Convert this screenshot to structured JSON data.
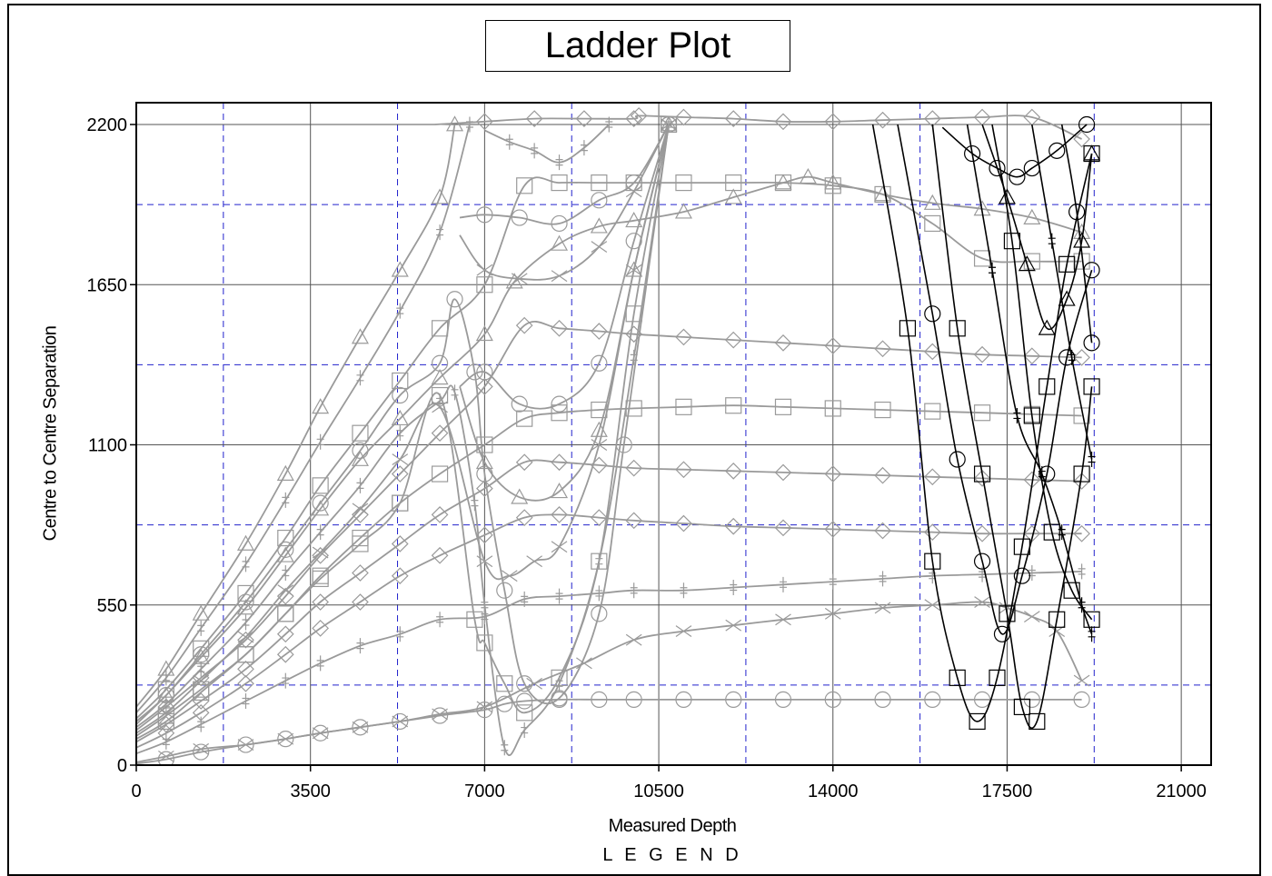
{
  "chart_data": {
    "type": "line",
    "title": "Ladder Plot",
    "xlabel": "Measured Depth",
    "ylabel": "Centre to Centre Separation",
    "legend_title": "L E G E N D",
    "xlim": [
      0,
      21600
    ],
    "ylim": [
      0,
      2200
    ],
    "xticks": [
      0,
      3500,
      7000,
      10500,
      14000,
      17500,
      21000
    ],
    "yticks": [
      0,
      550,
      1100,
      1650,
      2200
    ],
    "minor_grid_x": [
      1750,
      5250,
      8750,
      12250,
      15750,
      19250
    ],
    "minor_grid_y": [
      275,
      825,
      1375,
      1925
    ],
    "grid": true,
    "colors": {
      "offset_wells": "#9a9a9a",
      "reference_wells": "#000000",
      "minor_grid": "#2222cc",
      "major_grid": "#555555"
    },
    "series": [
      {
        "marker": "circle",
        "color": "#9a9a9a",
        "x": [
          0,
          600,
          1300,
          2200,
          3000,
          3700,
          4500,
          5300,
          6100,
          7000,
          7400,
          7800,
          8500,
          9300,
          10000,
          11000,
          12000,
          13000,
          14000,
          15000,
          16000,
          17000,
          18000,
          19000
        ],
        "y": [
          5,
          20,
          45,
          70,
          90,
          110,
          130,
          150,
          170,
          190,
          210,
          220,
          225,
          225,
          225,
          225,
          225,
          225,
          225,
          225,
          225,
          225,
          225,
          225
        ]
      },
      {
        "marker": "x",
        "color": "#9a9a9a",
        "x": [
          0,
          600,
          1300,
          2200,
          3000,
          3700,
          4500,
          5300,
          6100,
          7000,
          8000,
          9000,
          10000,
          11000,
          12000,
          13000,
          14000,
          15000,
          16000,
          17000,
          17500,
          18000,
          18500,
          19000
        ],
        "y": [
          10,
          30,
          55,
          70,
          90,
          110,
          130,
          150,
          175,
          200,
          280,
          350,
          430,
          460,
          480,
          500,
          520,
          540,
          550,
          560,
          540,
          510,
          460,
          290
        ]
      },
      {
        "marker": "plus",
        "color": "#9a9a9a",
        "x": [
          0,
          600,
          1300,
          2200,
          3000,
          3700,
          4500,
          5300,
          6100,
          7000,
          7800,
          8500,
          9300,
          10000,
          11000,
          12000,
          13000,
          14000,
          15000,
          16000,
          17000,
          18000,
          19000
        ],
        "y": [
          40,
          80,
          140,
          220,
          290,
          350,
          410,
          450,
          500,
          510,
          570,
          580,
          590,
          600,
          600,
          610,
          620,
          630,
          640,
          650,
          655,
          660,
          665
        ]
      },
      {
        "marker": "diamond",
        "color": "#9a9a9a",
        "x": [
          0,
          600,
          1300,
          2200,
          3000,
          3700,
          4500,
          5300,
          6100,
          7000,
          7800,
          8500,
          9300,
          10000,
          11000,
          12000,
          13000,
          14000,
          15000,
          16000,
          17000,
          18000,
          19000
        ],
        "y": [
          60,
          110,
          180,
          280,
          380,
          470,
          560,
          650,
          720,
          790,
          850,
          860,
          850,
          840,
          830,
          820,
          815,
          810,
          805,
          800,
          795,
          795,
          795
        ]
      },
      {
        "marker": "diamond",
        "color": "#9a9a9a",
        "x": [
          0,
          600,
          1300,
          2200,
          3000,
          3700,
          4500,
          5300,
          6100,
          7000,
          7800,
          8500,
          9300,
          10000,
          11000,
          12000,
          13000,
          14000,
          15000,
          16000,
          17000,
          18000,
          19000
        ],
        "y": [
          80,
          140,
          220,
          330,
          450,
          560,
          660,
          760,
          860,
          950,
          1040,
          1040,
          1030,
          1020,
          1015,
          1010,
          1005,
          1000,
          995,
          990,
          985,
          980,
          975
        ]
      },
      {
        "marker": "square",
        "color": "#9a9a9a",
        "x": [
          0,
          600,
          1300,
          2200,
          3000,
          3700,
          4500,
          5300,
          6100,
          7000,
          7800,
          8500,
          9300,
          10000,
          11000,
          12000,
          13000,
          14000,
          15000,
          16000,
          17000,
          18000,
          19000
        ],
        "y": [
          100,
          170,
          260,
          380,
          520,
          650,
          780,
          900,
          1000,
          1100,
          1190,
          1210,
          1220,
          1225,
          1230,
          1235,
          1230,
          1225,
          1220,
          1215,
          1210,
          1205,
          1200
        ]
      },
      {
        "marker": "diamond",
        "color": "#9a9a9a",
        "x": [
          0,
          600,
          1300,
          2200,
          3000,
          3700,
          4500,
          5300,
          6100,
          7000,
          7800,
          8500,
          9300,
          10000,
          11000,
          12000,
          13000,
          14000,
          15000,
          16000,
          17000,
          18000,
          19000
        ],
        "y": [
          120,
          200,
          300,
          430,
          580,
          720,
          860,
          1000,
          1140,
          1300,
          1510,
          1500,
          1490,
          1480,
          1470,
          1460,
          1450,
          1440,
          1430,
          1420,
          1410,
          1405,
          1400
        ]
      },
      {
        "marker": "triangle",
        "color": "#9a9a9a",
        "x": [
          0,
          600,
          1300,
          2200,
          3000,
          3700,
          4500,
          5300,
          6100,
          7000,
          7600,
          8500,
          9300,
          10000,
          11000,
          12000,
          13000,
          13500,
          14000,
          15000,
          16000,
          17000,
          18000,
          19000
        ],
        "y": [
          140,
          240,
          370,
          540,
          720,
          880,
          1050,
          1190,
          1330,
          1480,
          1660,
          1790,
          1850,
          1870,
          1900,
          1950,
          2000,
          2020,
          2000,
          1960,
          1930,
          1910,
          1880,
          1830
        ]
      },
      {
        "marker": "square",
        "color": "#9a9a9a",
        "x": [
          0,
          600,
          1300,
          2200,
          3000,
          3700,
          4500,
          5300,
          6100,
          7000,
          7800,
          8500,
          9300,
          10000,
          11000,
          12000,
          13000,
          14000,
          15000,
          16000,
          17000,
          18000,
          19000
        ],
        "y": [
          160,
          260,
          400,
          590,
          780,
          960,
          1140,
          1320,
          1500,
          1650,
          1990,
          2000,
          2000,
          2000,
          2000,
          2000,
          2000,
          1990,
          1960,
          1860,
          1740,
          1730,
          1730
        ]
      },
      {
        "marker": "diamond",
        "color": "#9a9a9a",
        "x": [
          6000,
          7000,
          8000,
          9000,
          10000,
          10100,
          11000,
          12000,
          13000,
          14000,
          15000,
          16000,
          17000,
          18000,
          19000
        ],
        "y": [
          2200,
          2210,
          2220,
          2220,
          2220,
          2230,
          2225,
          2220,
          2210,
          2210,
          2215,
          2220,
          2225,
          2225,
          2150
        ]
      },
      {
        "marker": "triangle",
        "color": "#9a9a9a",
        "x": [
          0,
          600,
          1300,
          2200,
          3000,
          3700,
          4500,
          5300,
          6100,
          6400
        ],
        "y": [
          200,
          330,
          520,
          760,
          1000,
          1230,
          1470,
          1700,
          1950,
          2200
        ]
      },
      {
        "marker": "plus",
        "color": "#9a9a9a",
        "x": [
          0,
          600,
          1300,
          2200,
          3000,
          3700,
          4500,
          5300,
          6100,
          6700
        ],
        "y": [
          180,
          300,
          470,
          690,
          910,
          1110,
          1330,
          1560,
          1830,
          2200
        ]
      },
      {
        "marker": "circle",
        "color": "#9a9a9a",
        "x": [
          0,
          600,
          1300,
          2200,
          3000,
          3700,
          4500,
          5300,
          6100,
          6400,
          6800,
          7000,
          7400,
          7800,
          8500,
          9300,
          9800,
          10700
        ],
        "y": [
          150,
          240,
          380,
          560,
          740,
          900,
          1080,
          1270,
          1380,
          1600,
          1350,
          1000,
          600,
          280,
          230,
          520,
          1100,
          2200
        ]
      },
      {
        "marker": "plus",
        "color": "#9a9a9a",
        "x": [
          0,
          600,
          1300,
          2200,
          3000,
          3700,
          4500,
          5300,
          6100,
          6400,
          6800,
          7000,
          7400,
          7800,
          8500,
          9300,
          10000,
          10700
        ],
        "y": [
          130,
          210,
          330,
          490,
          660,
          800,
          960,
          1140,
          1250,
          1280,
          900,
          550,
          60,
          120,
          280,
          700,
          1400,
          2200
        ]
      },
      {
        "marker": "x",
        "color": "#9a9a9a",
        "x": [
          0,
          600,
          1300,
          2200,
          3000,
          3700,
          4500,
          5300,
          6100,
          7000,
          7500,
          8000,
          8500,
          9300,
          10000,
          10700
        ],
        "y": [
          110,
          180,
          290,
          440,
          600,
          730,
          880,
          1050,
          1230,
          700,
          650,
          700,
          750,
          1100,
          1700,
          2200
        ]
      },
      {
        "marker": "square",
        "color": "#9a9a9a",
        "x": [
          0,
          600,
          1300,
          2200,
          3000,
          3700,
          4500,
          5300,
          6100,
          6800,
          7000,
          7400,
          7800,
          8500,
          9300,
          10000,
          10700
        ],
        "y": [
          90,
          150,
          250,
          380,
          520,
          640,
          760,
          900,
          1270,
          500,
          420,
          280,
          180,
          300,
          700,
          1550,
          2200
        ]
      },
      {
        "marker": "circle",
        "color": "#9a9a9a",
        "x": [
          6500,
          7000,
          7700,
          8500,
          9300,
          10000,
          10700
        ],
        "y": [
          1880,
          1890,
          1880,
          1860,
          1940,
          2000,
          2200
        ]
      },
      {
        "marker": "circle",
        "color": "#9a9a9a",
        "x": [
          6500,
          7000,
          7700,
          8500,
          9300,
          10000,
          10700
        ],
        "y": [
          1300,
          1350,
          1240,
          1240,
          1380,
          1800,
          2200
        ]
      },
      {
        "marker": "x",
        "color": "#9a9a9a",
        "x": [
          6500,
          7000,
          7700,
          8500,
          9300,
          10000,
          10700
        ],
        "y": [
          1820,
          1700,
          1670,
          1680,
          1780,
          1970,
          2200
        ]
      },
      {
        "marker": "triangle",
        "color": "#9a9a9a",
        "x": [
          6500,
          7000,
          7700,
          8500,
          9300,
          10000,
          10700
        ],
        "y": [
          1300,
          1040,
          920,
          940,
          1150,
          1700,
          2200
        ]
      },
      {
        "marker": "plus",
        "color": "#9a9a9a",
        "x": [
          7000,
          7500,
          8000,
          8500,
          9000,
          9500
        ],
        "y": [
          2180,
          2140,
          2110,
          2070,
          2120,
          2200
        ]
      },
      {
        "marker": "circle",
        "color": "#000000",
        "x": [
          16200,
          16800,
          17300,
          17700,
          18000,
          18500,
          19100
        ],
        "y": [
          2190,
          2100,
          2050,
          2020,
          2050,
          2110,
          2200
        ]
      },
      {
        "marker": "square",
        "color": "#000000",
        "x": [
          14800,
          15500,
          16000,
          16500,
          16900,
          17300,
          17800,
          18300,
          18700,
          19200
        ],
        "y": [
          2200,
          1500,
          700,
          300,
          150,
          300,
          750,
          1300,
          1720,
          2100
        ]
      },
      {
        "marker": "circle",
        "color": "#000000",
        "x": [
          15300,
          16000,
          16500,
          17000,
          17400,
          17800,
          18300,
          18700,
          19200
        ],
        "y": [
          2200,
          1550,
          1050,
          700,
          450,
          650,
          1000,
          1400,
          1700
        ]
      },
      {
        "marker": "square",
        "color": "#000000",
        "x": [
          16000,
          16500,
          17000,
          17500,
          17800,
          18100,
          18500,
          19000,
          19200
        ],
        "y": [
          2200,
          1500,
          1000,
          520,
          200,
          150,
          500,
          1000,
          1300
        ]
      },
      {
        "marker": "plus",
        "color": "#000000",
        "x": [
          16700,
          17200,
          17700,
          18200,
          18600,
          19000,
          19200
        ],
        "y": [
          2200,
          1700,
          1200,
          1000,
          800,
          550,
          450
        ]
      },
      {
        "marker": "triangle",
        "color": "#000000",
        "x": [
          17000,
          17500,
          17900,
          18300,
          18700,
          19000,
          19200
        ],
        "y": [
          2200,
          1950,
          1720,
          1500,
          1600,
          1800,
          2100
        ]
      },
      {
        "marker": "square",
        "color": "#000000",
        "x": [
          17200,
          17600,
          18000,
          18400,
          18800,
          19200
        ],
        "y": [
          2200,
          1800,
          1200,
          800,
          600,
          500
        ]
      },
      {
        "marker": "plus",
        "color": "#000000",
        "x": [
          18000,
          18400,
          18800,
          19200
        ],
        "y": [
          2200,
          1800,
          1400,
          1050
        ]
      },
      {
        "marker": "circle",
        "color": "#000000",
        "x": [
          18600,
          18900,
          19200
        ],
        "y": [
          2200,
          1900,
          1450
        ]
      }
    ]
  }
}
